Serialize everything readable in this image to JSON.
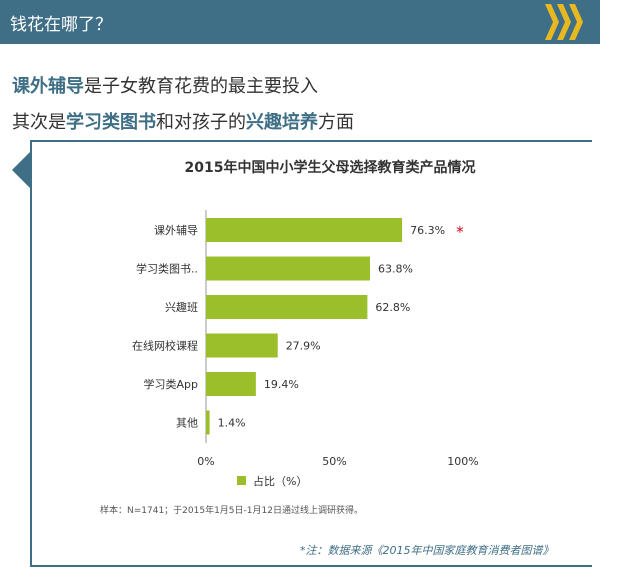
{
  "header": {
    "title": "钱花在哪了？"
  },
  "headline": {
    "line1": {
      "hl": "课外辅导",
      "rest": "是子女教育花费的最主要投入"
    },
    "line2": {
      "pre": "其次是",
      "hl1": "学习类图书",
      "mid": "和对孩子的",
      "hl2": "兴趣培养",
      "post": "方面"
    }
  },
  "colors": {
    "bar": "#9bbf2a",
    "accent": "#3f6f86",
    "star": "#d0021b"
  },
  "chart_data": {
    "type": "bar",
    "orientation": "horizontal",
    "title": "2015年中国中小学生父母选择教育类产品情况",
    "categories": [
      "课外辅导",
      "学习类图书..",
      "兴趣班",
      "在线网校课程",
      "学习类App",
      "其他"
    ],
    "values": [
      76.3,
      63.8,
      62.8,
      27.9,
      19.4,
      1.4
    ],
    "value_labels": [
      "76.3%",
      "63.8%",
      "62.8%",
      "27.9%",
      "19.4%",
      "1.4%"
    ],
    "highlight_marker": "*",
    "xlim": [
      0,
      100
    ],
    "xticks": [
      "0%",
      "50%",
      "100%"
    ],
    "legend": {
      "label": "占比（%）",
      "placement": "bottom"
    },
    "note": "样本：N=1741；于2015年1月5日-1月12日通过线上调研获得。"
  },
  "source": "*注：数据来源《2015年中国家庭教育消费者图谱》"
}
